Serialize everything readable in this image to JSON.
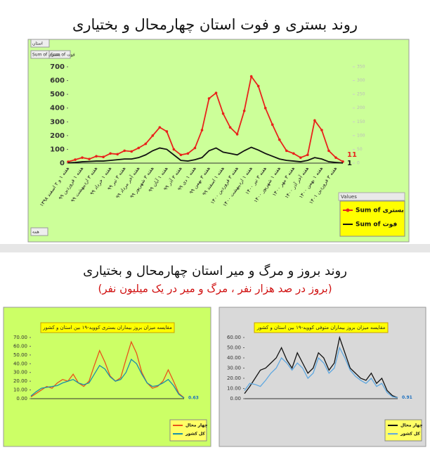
{
  "chart_data": [
    {
      "type": "line",
      "title": "روند بستری و فوت استان چهارمحال و بختیاری",
      "background": "#ccff99",
      "field_buttons": [
        "استان",
        "Sum of فوت",
        "Sum of بستری",
        "همه"
      ],
      "legend_title": "Values",
      "legend": "lower-right",
      "categories": [
        "هفته ۱ و ۲ اسفند ۱۳۹۸",
        null,
        "هفته ۱ فروردین ۹۹",
        null,
        "هفته ۳ اردیبهشت ۹۹",
        null,
        "هفته ۱ خرداد ۹۹",
        null,
        "هفته ۳ تیر ۹۹",
        null,
        "هفته آخر مرداد ۹۹",
        null,
        "هفته ۳ شهریور ۹۹",
        null,
        "هفته ۱ آبان ۹۹",
        null,
        "هفته ۳ آذر ۹۹",
        null,
        "هفته ۱ دی ۹۹",
        null,
        "هفته ۳ بهمن ۹۹",
        null,
        "هفته ۱ اسفند ۹۹",
        null,
        "هفته ۳ فروردین ۱۴۰۰",
        null,
        "هفته ۱ اردیبهشت ۱۴۰۰",
        null,
        "هفته ۳ تیر ۱۴۰۰",
        null,
        "هفته ۱ شهریور ۱۴۰۰",
        null,
        "هفته ۳ مهر ۱۴۰۰",
        null,
        "هفته آخر آذر ۱۴۰۰",
        null,
        "هفته ۱ بهمن ۱۴۰۰",
        null,
        "هفته ۳ فروردین ۱۴۰۱",
        null
      ],
      "ylim": [
        0,
        700
      ],
      "yticks": [
        0,
        100,
        200,
        300,
        400,
        500,
        600,
        700
      ],
      "y2lim": [
        0,
        350
      ],
      "y2ticks": [
        0,
        50,
        100,
        150,
        200,
        250,
        300,
        350
      ],
      "series": [
        {
          "name": "Sum of بستری",
          "color": "#e8221b",
          "marker": true,
          "end_label": true,
          "values": [
            10,
            25,
            40,
            30,
            50,
            45,
            70,
            65,
            90,
            85,
            110,
            140,
            200,
            260,
            230,
            100,
            60,
            70,
            110,
            240,
            470,
            510,
            360,
            260,
            210,
            380,
            630,
            560,
            400,
            280,
            170,
            90,
            70,
            40,
            60,
            310,
            240,
            90,
            40,
            11
          ]
        },
        {
          "name": "Sum of فوت",
          "color": "#111111",
          "marker": false,
          "end_label": true,
          "values": [
            2,
            5,
            10,
            12,
            15,
            15,
            20,
            25,
            30,
            30,
            40,
            60,
            90,
            110,
            100,
            60,
            20,
            15,
            25,
            40,
            90,
            110,
            80,
            70,
            60,
            90,
            115,
            95,
            70,
            50,
            30,
            20,
            15,
            10,
            20,
            40,
            30,
            10,
            5,
            1
          ]
        }
      ]
    },
    {
      "type": "line",
      "title": "مقایسه میزان بروز بیماران بستری کووید-۱۹ بین استان و کشور",
      "background": "#ccff66",
      "legend": "lower-right",
      "ylim": [
        0,
        70
      ],
      "yticks": [
        {
          "value": 0,
          "label": "0.00"
        },
        {
          "value": 10,
          "label": "10.00"
        },
        {
          "value": 20,
          "label": "20.00"
        },
        {
          "value": 30,
          "label": "30.00"
        },
        {
          "value": 40,
          "label": "40.00"
        },
        {
          "value": 50,
          "label": "50.00"
        },
        {
          "value": 60,
          "label": "60.00"
        },
        {
          "value": 70,
          "label": "70.00"
        }
      ],
      "series": [
        {
          "name": "چهار محال",
          "color": "#e8521b",
          "marker": false,
          "end_label": false,
          "values": [
            2,
            6,
            10,
            14,
            12,
            18,
            22,
            20,
            28,
            18,
            14,
            20,
            38,
            55,
            42,
            26,
            20,
            24,
            45,
            65,
            52,
            30,
            18,
            12,
            14,
            20,
            33,
            20,
            6,
            1
          ]
        },
        {
          "name": "کل کشور",
          "color": "#1b8fa8",
          "marker": false,
          "end_label": true,
          "values": [
            3,
            8,
            12,
            13,
            14,
            15,
            18,
            20,
            22,
            18,
            16,
            18,
            28,
            38,
            34,
            25,
            20,
            22,
            30,
            45,
            40,
            28,
            18,
            14,
            15,
            18,
            22,
            15,
            5,
            0.63
          ]
        }
      ]
    },
    {
      "type": "line",
      "title": "مقایسه میزان بروز بیماران متوفی کووید-۱۹ بین استان و کشور",
      "background": "#d9d9d9",
      "legend": "lower-right",
      "ylim": [
        0,
        60
      ],
      "yticks": [
        {
          "value": 0,
          "label": "0.00"
        },
        {
          "value": 10,
          "label": "10.00"
        },
        {
          "value": 20,
          "label": "20.00"
        },
        {
          "value": 30,
          "label": "30.00"
        },
        {
          "value": 40,
          "label": "40.00"
        },
        {
          "value": 50,
          "label": "50.00"
        },
        {
          "value": 60,
          "label": "60.00"
        }
      ],
      "series": [
        {
          "name": "چهار محال",
          "color": "#111111",
          "marker": false,
          "end_label": false,
          "values": [
            5,
            12,
            20,
            28,
            30,
            35,
            40,
            50,
            38,
            30,
            45,
            35,
            25,
            30,
            45,
            40,
            28,
            35,
            60,
            45,
            30,
            25,
            20,
            18,
            25,
            15,
            20,
            8,
            3,
            1
          ]
        },
        {
          "name": "کل کشور",
          "color": "#5fa8e0",
          "marker": false,
          "end_label": true,
          "values": [
            8,
            15,
            14,
            12,
            18,
            25,
            30,
            40,
            35,
            28,
            35,
            30,
            20,
            25,
            40,
            35,
            25,
            30,
            50,
            40,
            28,
            22,
            18,
            15,
            20,
            12,
            15,
            6,
            2,
            0.91
          ]
        }
      ]
    }
  ],
  "section_2": {
    "title": "روند بروز و مرگ و میر استان چهارمحال و بختیاری",
    "subtitle": "(بروز در صد هزار نفر ، مرگ و میر در یک میلیون نفر)"
  }
}
